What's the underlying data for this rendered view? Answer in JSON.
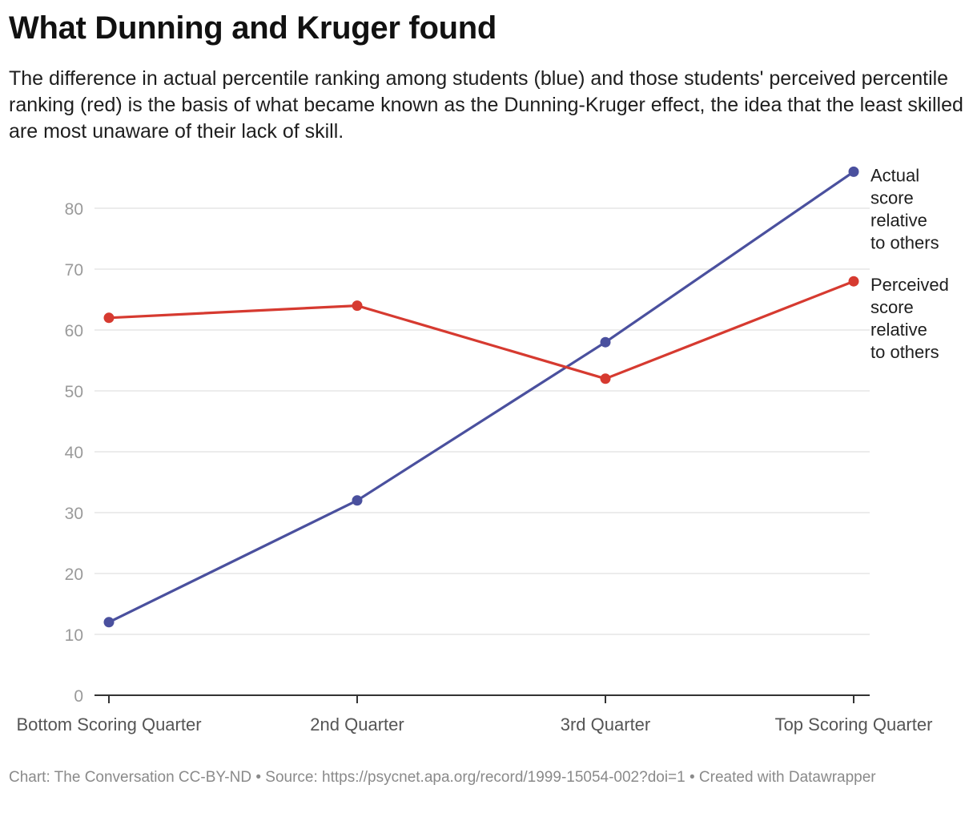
{
  "chart_data": {
    "type": "line",
    "title": "What Dunning and Kruger found",
    "subtitle": "The difference in actual percentile ranking among students (blue) and those students' perceived percentile ranking (red) is the basis of what became known as the Dunning-Kruger effect, the idea that the least skilled are most unaware of their lack of skill.",
    "categories": [
      "Bottom Scoring Quarter",
      "2nd Quarter",
      "3rd Quarter",
      "Top Scoring Quarter"
    ],
    "series": [
      {
        "name": "Actual score relative to others",
        "label_lines": [
          "Actual",
          "score",
          "relative",
          "to others"
        ],
        "color": "#4a509e",
        "values": [
          12,
          32,
          58,
          86
        ]
      },
      {
        "name": "Perceived score relative to others",
        "label_lines": [
          "Perceived",
          "score",
          "relative",
          "to others"
        ],
        "color": "#d63a30",
        "values": [
          62,
          64,
          52,
          68
        ]
      }
    ],
    "yticks": [
      0,
      10,
      20,
      30,
      40,
      50,
      60,
      70,
      80
    ],
    "ylim": [
      0,
      88
    ],
    "xlabel": "",
    "ylabel": "",
    "grid": true,
    "legend": "direct labels at right end of lines"
  },
  "notes": "Chart: The Conversation CC-BY-ND • Source: https://psycnet.apa.org/record/1999-15054-002?doi=1 • Created with Datawrapper",
  "colors": {
    "grid": "#e1e1e1",
    "axis": "#333333",
    "tick_label": "#9a9a9a",
    "category_label": "#555555",
    "series_label": "#1e1e1e"
  }
}
